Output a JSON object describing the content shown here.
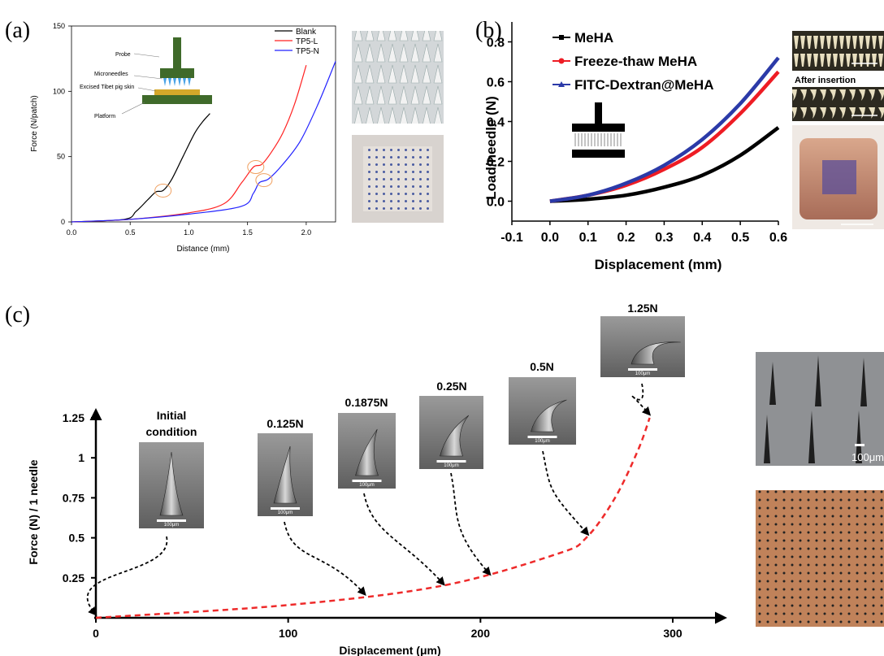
{
  "panel_labels": {
    "a": "(a)",
    "b": "(b)",
    "c": "(c)"
  },
  "colors": {
    "blank": "#000000",
    "tp5l": "#ff2222",
    "tp5n": "#2222ff",
    "meha": "#000000",
    "freeze": "#ee1c24",
    "fitc": "#2b3aa8",
    "dashed": "#ee2a2a",
    "marker": "#f0a060"
  },
  "icons": [
    "probe-schematic-icon",
    "compression-test-schematic-icon"
  ],
  "chart_data": [
    {
      "type": "line",
      "panel": "a",
      "xlabel": "Distance (mm)",
      "ylabel": "Force (N/patch)",
      "xlim": [
        0,
        2.25
      ],
      "ylim": [
        0,
        150
      ],
      "xticks": [
        "0.0",
        "0.5",
        "1.0",
        "1.5",
        "2.0"
      ],
      "yticks": [
        "0",
        "50",
        "100",
        "150"
      ],
      "legend_position": "top-right",
      "series": [
        {
          "name": "Blank",
          "x": [
            0.0,
            0.45,
            0.55,
            0.65,
            0.72,
            0.78,
            0.85,
            0.95,
            1.05,
            1.12,
            1.18
          ],
          "y": [
            0,
            2,
            8,
            17,
            23,
            24,
            32,
            50,
            68,
            77,
            83
          ]
        },
        {
          "name": "TP5-L",
          "x": [
            0.0,
            0.5,
            1.0,
            1.3,
            1.45,
            1.55,
            1.62,
            1.7,
            1.8,
            1.9,
            2.0
          ],
          "y": [
            0,
            2,
            7,
            14,
            30,
            42,
            44,
            53,
            68,
            90,
            120
          ]
        },
        {
          "name": "TP5-N",
          "x": [
            0.0,
            0.5,
            1.0,
            1.45,
            1.55,
            1.6,
            1.68,
            1.8,
            1.95,
            2.1,
            2.25
          ],
          "y": [
            0,
            2,
            6,
            12,
            22,
            30,
            33,
            44,
            62,
            90,
            123
          ]
        }
      ],
      "annotations": [
        "Probe",
        "Microneedles",
        "Excised Tibet pig skin",
        "Platform"
      ]
    },
    {
      "type": "line",
      "panel": "b",
      "xlabel": "Displacement (mm)",
      "ylabel": "Load/needle (N)",
      "xlim": [
        -0.1,
        0.6
      ],
      "ylim": [
        -0.1,
        0.9
      ],
      "xticks": [
        "-0.1",
        "0.0",
        "0.1",
        "0.2",
        "0.3",
        "0.4",
        "0.5",
        "0.6"
      ],
      "yticks": [
        "0.0",
        "0.2",
        "0.4",
        "0.6",
        "0.8"
      ],
      "legend_position": "top-left",
      "series": [
        {
          "name": "MeHA",
          "x": [
            0.0,
            0.1,
            0.2,
            0.3,
            0.4,
            0.5,
            0.6
          ],
          "y": [
            0.0,
            0.01,
            0.03,
            0.07,
            0.13,
            0.23,
            0.37
          ]
        },
        {
          "name": "Freeze-thaw MeHA",
          "x": [
            0.0,
            0.1,
            0.2,
            0.3,
            0.4,
            0.5,
            0.6
          ],
          "y": [
            0.0,
            0.03,
            0.08,
            0.16,
            0.27,
            0.44,
            0.65
          ]
        },
        {
          "name": "FITC-Dextran@MeHA",
          "x": [
            0.0,
            0.1,
            0.2,
            0.3,
            0.4,
            0.5,
            0.6
          ],
          "y": [
            0.0,
            0.03,
            0.09,
            0.18,
            0.31,
            0.49,
            0.72
          ]
        }
      ],
      "annotations": [
        "After insertion"
      ]
    },
    {
      "type": "line",
      "panel": "c",
      "xlabel": "Displacement (μm)",
      "ylabel": "Force (N) / 1 needle",
      "xlim": [
        0,
        300
      ],
      "ylim": [
        0,
        1.25
      ],
      "xticks": [
        "0",
        "100",
        "200",
        "300"
      ],
      "yticks": [
        "0.25",
        "0.5",
        "0.75",
        "1",
        "1.25"
      ],
      "series": [
        {
          "name": "",
          "x": [
            0,
            100,
            180,
            240,
            255,
            270,
            282,
            288
          ],
          "y": [
            0.0,
            0.08,
            0.2,
            0.4,
            0.5,
            0.75,
            1.05,
            1.25
          ]
        }
      ],
      "stages": [
        {
          "label": "Initial condition",
          "x": 0,
          "y": 0.0,
          "scale": "100μm"
        },
        {
          "label": "0.125N",
          "x": 140,
          "y": 0.125,
          "scale": "100μm"
        },
        {
          "label": "0.1875N",
          "x": 181,
          "y": 0.1875,
          "scale": "100μm"
        },
        {
          "label": "0.25N",
          "x": 205,
          "y": 0.25,
          "scale": "100μm"
        },
        {
          "label": "0.5N",
          "x": 256,
          "y": 0.5,
          "scale": "100μm"
        },
        {
          "label": "1.25N",
          "x": 288,
          "y": 1.25,
          "scale": "100μm"
        }
      ],
      "side_scale": "100μm"
    }
  ]
}
